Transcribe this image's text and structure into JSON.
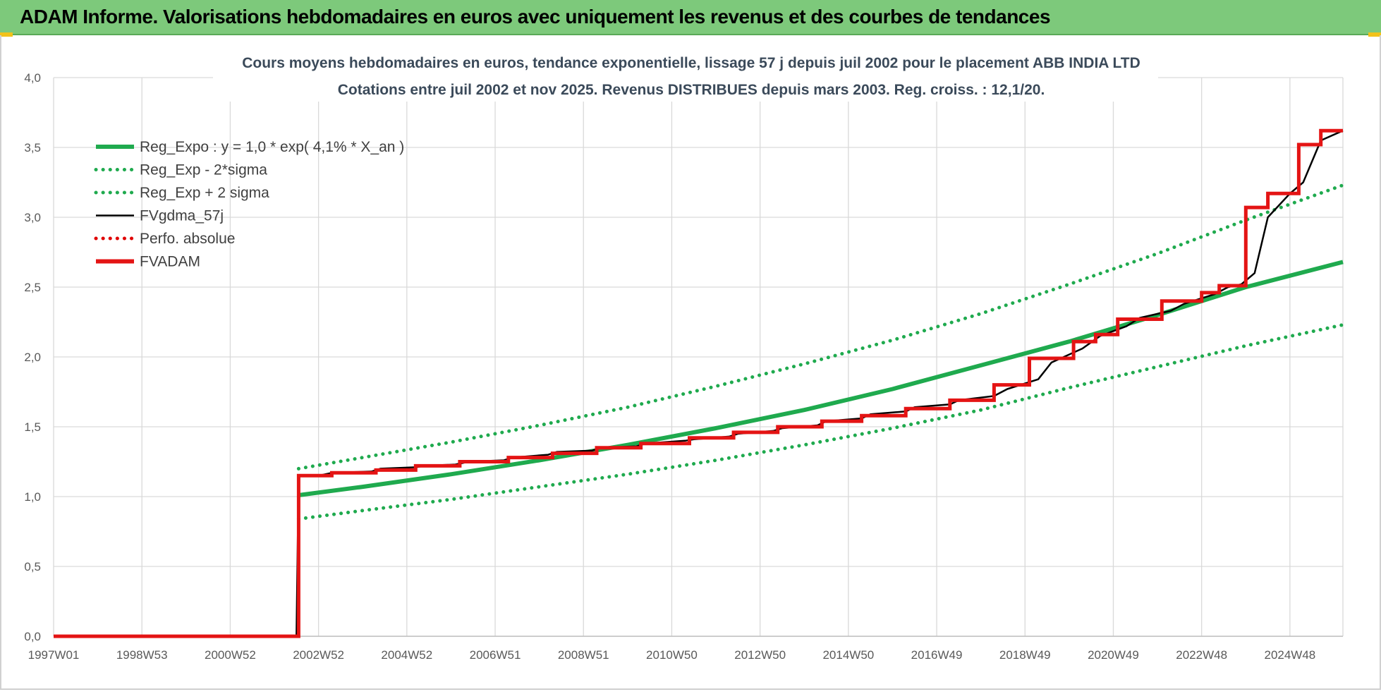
{
  "header": {
    "title": "ADAM Informe. Valorisations hebdomadaires en euros avec uniquement les revenus et des courbes de tendances"
  },
  "colors": {
    "title_bar": "#7dc97b",
    "reg_expo": "#1faa4e",
    "fvgdma": "#000000",
    "perfo": "#e00000",
    "fvadam": "#e41414",
    "grid": "#d9d9d9",
    "axis_text": "#595959",
    "chart_title": "#3b4a5a"
  },
  "chart_data": {
    "type": "line",
    "title_line1": "Cours moyens hebdomadaires en euros, tendance exponentielle, lissage 57 j depuis juil 2002 pour le placement ABB INDIA LTD",
    "title_line2": "Cotations entre juil 2002 et nov 2025. Revenus DISTRIBUES depuis mars 2003. Reg. croiss. : 12,1/20.",
    "x_tick_labels": [
      "1997W01",
      "1998W53",
      "2000W52",
      "2002W52",
      "2004W52",
      "2006W51",
      "2008W51",
      "2010W50",
      "2012W50",
      "2014W50",
      "2016W49",
      "2018W49",
      "2020W49",
      "2022W48",
      "2024W48"
    ],
    "x_tick_years": [
      1997.0,
      1999.0,
      2001.0,
      2003.0,
      2005.0,
      2007.0,
      2009.0,
      2011.0,
      2013.0,
      2015.0,
      2017.0,
      2019.0,
      2021.0,
      2023.0,
      2025.0
    ],
    "xlim": [
      1997.0,
      2026.2
    ],
    "ylim": [
      0,
      4.0
    ],
    "y_ticks": [
      0,
      0.5,
      1.0,
      1.5,
      2.0,
      2.5,
      3.0,
      3.5,
      4.0
    ],
    "y_tick_labels": [
      "0,0",
      "0,5",
      "1,0",
      "1,5",
      "2,0",
      "2,5",
      "3,0",
      "3,5",
      "4,0"
    ],
    "grid": true,
    "legend_position": "top-left",
    "series": [
      {
        "name": "Reg_Expo : y = 1,0 * exp( 4,1% *  X_an )",
        "style": "solid-thick",
        "color": "#1faa4e",
        "x": [
          2002.55,
          2004.0,
          2006.0,
          2008.0,
          2010.0,
          2012.0,
          2014.0,
          2016.0,
          2018.0,
          2020.0,
          2022.0,
          2024.0,
          2026.2
        ],
        "y": [
          1.01,
          1.07,
          1.16,
          1.26,
          1.37,
          1.49,
          1.62,
          1.77,
          1.94,
          2.11,
          2.3,
          2.5,
          2.68
        ]
      },
      {
        "name": "Reg_Exp - 2*sigma",
        "style": "dotted",
        "color": "#1faa4e",
        "x": [
          2002.55,
          2004.0,
          2006.0,
          2008.0,
          2010.0,
          2012.0,
          2014.0,
          2016.0,
          2018.0,
          2020.0,
          2022.0,
          2024.0,
          2026.2
        ],
        "y": [
          0.84,
          0.9,
          0.98,
          1.07,
          1.16,
          1.26,
          1.37,
          1.49,
          1.62,
          1.78,
          1.93,
          2.08,
          2.23
        ]
      },
      {
        "name": "Reg_Exp + 2 sigma",
        "style": "dotted",
        "color": "#1faa4e",
        "x": [
          2002.55,
          2004.0,
          2006.0,
          2008.0,
          2010.0,
          2012.0,
          2014.0,
          2016.0,
          2018.0,
          2020.0,
          2022.0,
          2024.0,
          2026.2
        ],
        "y": [
          1.2,
          1.28,
          1.39,
          1.51,
          1.64,
          1.79,
          1.95,
          2.12,
          2.31,
          2.52,
          2.74,
          2.98,
          3.23
        ]
      },
      {
        "name": "FVgdma_57j",
        "style": "solid-thin",
        "color": "#000000",
        "x": [
          1997.0,
          2002.5,
          2002.55,
          2003.0,
          2003.3,
          2004.2,
          2004.4,
          2005.2,
          2005.4,
          2006.1,
          2006.4,
          2007.2,
          2007.4,
          2008.2,
          2008.4,
          2009.2,
          2009.4,
          2010.2,
          2010.4,
          2011.3,
          2011.5,
          2012.3,
          2012.5,
          2013.3,
          2013.5,
          2014.3,
          2014.5,
          2015.3,
          2015.5,
          2016.3,
          2016.5,
          2017.3,
          2017.5,
          2018.3,
          2018.6,
          2019.3,
          2019.6,
          2020.3,
          2020.7,
          2021.3,
          2021.6,
          2022.3,
          2022.6,
          2023.0,
          2023.3,
          2023.6,
          2023.9,
          2024.2,
          2024.5,
          2025.0,
          2025.3,
          2025.7,
          2026.2
        ],
        "y": [
          0,
          0,
          1.15,
          1.15,
          1.17,
          1.18,
          1.2,
          1.21,
          1.22,
          1.23,
          1.25,
          1.26,
          1.28,
          1.3,
          1.32,
          1.33,
          1.35,
          1.36,
          1.38,
          1.4,
          1.41,
          1.43,
          1.45,
          1.47,
          1.49,
          1.51,
          1.54,
          1.56,
          1.59,
          1.61,
          1.64,
          1.66,
          1.69,
          1.72,
          1.77,
          1.84,
          1.96,
          2.06,
          2.15,
          2.22,
          2.28,
          2.33,
          2.38,
          2.42,
          2.45,
          2.5,
          2.52,
          2.6,
          3.0,
          3.17,
          3.25,
          3.55,
          3.62
        ]
      },
      {
        "name": "Perfo. absolue",
        "style": "dotted",
        "color": "#e00000",
        "x": [],
        "y": []
      },
      {
        "name": "FVADAM",
        "style": "step-thick",
        "color": "#e41414",
        "x": [
          1997.0,
          2002.55,
          2003.3,
          2004.3,
          2005.2,
          2006.2,
          2007.3,
          2008.3,
          2009.3,
          2010.3,
          2011.4,
          2012.4,
          2013.4,
          2014.4,
          2015.3,
          2016.3,
          2017.3,
          2018.3,
          2019.1,
          2020.1,
          2020.6,
          2021.1,
          2022.1,
          2023.0,
          2023.4,
          2024.0,
          2024.5,
          2025.2,
          2025.7,
          2026.2
        ],
        "y": [
          0,
          1.15,
          1.17,
          1.19,
          1.22,
          1.25,
          1.28,
          1.31,
          1.35,
          1.38,
          1.42,
          1.46,
          1.5,
          1.54,
          1.58,
          1.63,
          1.69,
          1.8,
          1.99,
          2.11,
          2.16,
          2.27,
          2.4,
          2.46,
          2.51,
          3.07,
          3.17,
          3.52,
          3.62,
          3.62
        ]
      }
    ]
  }
}
